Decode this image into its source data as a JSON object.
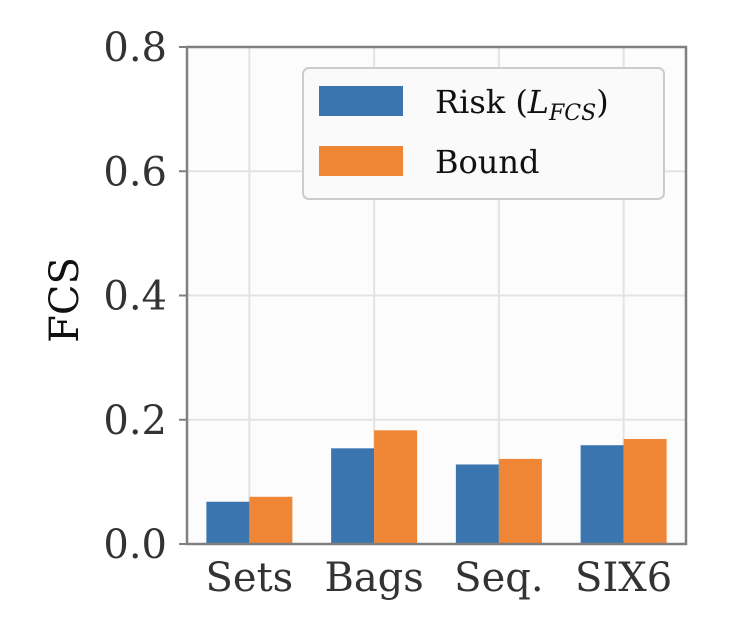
{
  "chart_data": {
    "type": "bar",
    "title": "",
    "xlabel": "",
    "ylabel": "FCS",
    "categories": [
      "Sets",
      "Bags",
      "Seq.",
      "SIX6"
    ],
    "series": [
      {
        "name": "Risk (L_FCS)",
        "name_prefix": "Risk (",
        "name_math": "L",
        "name_sub": "FCS",
        "name_suffix": ")",
        "color": "#3a75b0",
        "values": [
          0.068,
          0.154,
          0.128,
          0.159
        ]
      },
      {
        "name": "Bound",
        "color": "#ef8636",
        "values": [
          0.076,
          0.183,
          0.137,
          0.169
        ]
      }
    ],
    "ylim": [
      0,
      0.8
    ],
    "yticks": [
      "0.0",
      "0.2",
      "0.4",
      "0.6",
      "0.8"
    ],
    "ytick_values": [
      0,
      0.2,
      0.4,
      0.6,
      0.8
    ],
    "grid": true,
    "legend_position": "top-right"
  }
}
